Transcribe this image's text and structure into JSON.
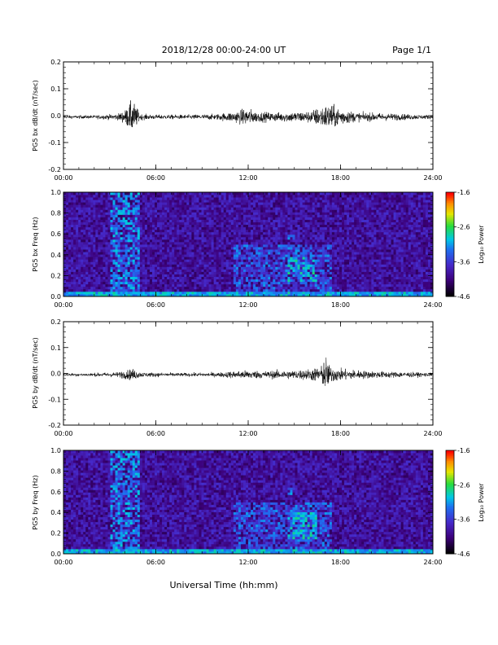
{
  "header": {
    "title": "2018/12/28  00:00-24:00 UT",
    "page": "Page 1/1"
  },
  "footer": {
    "xlabel": "Universal Time (hh:mm)"
  },
  "chart_data": [
    {
      "type": "line",
      "panel": "bx-timeseries",
      "ylabel": "PG5 bx dB/dt (nT/sec)",
      "xlim": [
        0,
        24
      ],
      "ylim": [
        -0.2,
        0.2
      ],
      "xticks": [
        "00:00",
        "06:00",
        "12:00",
        "18:00",
        "24:00"
      ],
      "yticks": [
        "-0.2",
        "-0.1",
        "0.0",
        "0.1",
        "0.2"
      ],
      "envelope": {
        "hours": [
          0,
          2,
          3.5,
          4,
          4.3,
          4.5,
          5,
          6,
          8,
          10,
          11,
          12,
          12.5,
          14,
          15,
          16,
          17,
          17.3,
          17.6,
          19,
          21,
          24
        ],
        "amplitude": [
          0.01,
          0.012,
          0.02,
          0.045,
          0.09,
          0.11,
          0.02,
          0.015,
          0.015,
          0.02,
          0.035,
          0.06,
          0.035,
          0.03,
          0.035,
          0.04,
          0.08,
          0.09,
          0.07,
          0.03,
          0.025,
          0.012
        ]
      }
    },
    {
      "type": "heatmap",
      "panel": "bx-spectrogram",
      "ylabel": "PG5 bx Freq (Hz)",
      "xlim": [
        0,
        24
      ],
      "ylim": [
        0,
        1.0
      ],
      "xticks": [
        "00:00",
        "06:00",
        "12:00",
        "18:00",
        "24:00"
      ],
      "yticks": [
        "0.0",
        "0.2",
        "0.4",
        "0.6",
        "0.8",
        "1.0"
      ],
      "colorbar": {
        "label": "Log₁₀ Power",
        "min": -4.6,
        "max": -1.6,
        "ticks": [
          "-1.6",
          "-2.6",
          "-3.6",
          "-4.6"
        ]
      },
      "features": [
        {
          "t0": 3.0,
          "t1": 5.0,
          "f0": 0.0,
          "f1": 1.0,
          "level": -3.2
        },
        {
          "t0": 11.0,
          "t1": 17.5,
          "f0": 0.0,
          "f1": 0.5,
          "level": -3.4
        },
        {
          "t0": 14.5,
          "t1": 16.5,
          "f0": 0.15,
          "f1": 0.4,
          "level": -3.0
        },
        {
          "t0": 14.6,
          "t1": 15.0,
          "f0": 0.55,
          "f1": 0.65,
          "level": -3.3
        }
      ]
    },
    {
      "type": "line",
      "panel": "by-timeseries",
      "ylabel": "PG5 by dB/dt (nT/sec)",
      "xlim": [
        0,
        24
      ],
      "ylim": [
        -0.2,
        0.2
      ],
      "xticks": [
        "00:00",
        "06:00",
        "12:00",
        "18:00",
        "24:00"
      ],
      "yticks": [
        "-0.2",
        "-0.1",
        "0.0",
        "0.1",
        "0.2"
      ],
      "envelope": {
        "hours": [
          0,
          2,
          3.5,
          4.2,
          4.5,
          5,
          6,
          8,
          10,
          11,
          12,
          13,
          14,
          15,
          16,
          16.8,
          17,
          17.3,
          18,
          20,
          22,
          24
        ],
        "amplitude": [
          0.01,
          0.012,
          0.018,
          0.035,
          0.04,
          0.018,
          0.015,
          0.012,
          0.015,
          0.025,
          0.03,
          0.025,
          0.03,
          0.03,
          0.04,
          0.06,
          0.14,
          0.06,
          0.04,
          0.025,
          0.02,
          0.012
        ]
      }
    },
    {
      "type": "heatmap",
      "panel": "by-spectrogram",
      "ylabel": "PG5 by Freq (Hz)",
      "xlim": [
        0,
        24
      ],
      "ylim": [
        0,
        1.0
      ],
      "xticks": [
        "00:00",
        "06:00",
        "12:00",
        "18:00",
        "24:00"
      ],
      "yticks": [
        "0.0",
        "0.2",
        "0.4",
        "0.6",
        "0.8",
        "1.0"
      ],
      "colorbar": {
        "label": "Log₁₀ Power",
        "min": -4.6,
        "max": -1.6,
        "ticks": [
          "-1.6",
          "-2.6",
          "-3.6",
          "-4.6"
        ]
      },
      "features": [
        {
          "t0": 3.0,
          "t1": 5.0,
          "f0": 0.0,
          "f1": 1.0,
          "level": -3.2
        },
        {
          "t0": 11.0,
          "t1": 17.5,
          "f0": 0.0,
          "f1": 0.5,
          "level": -3.4
        },
        {
          "t0": 14.5,
          "t1": 16.5,
          "f0": 0.15,
          "f1": 0.4,
          "level": -3.0
        },
        {
          "t0": 14.6,
          "t1": 15.0,
          "f0": 0.55,
          "f1": 0.65,
          "level": -3.3
        }
      ]
    }
  ]
}
